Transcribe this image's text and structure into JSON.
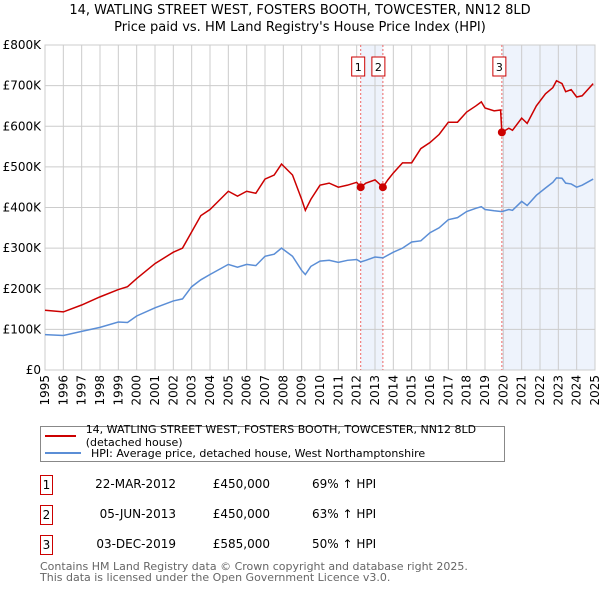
{
  "title": "14, WATLING STREET WEST, FOSTERS BOOTH, TOWCESTER, NN12 8LD",
  "subtitle": "Price paid vs. HM Land Registry's House Price Index (HPI)",
  "colors": {
    "property": "#cc0000",
    "hpi": "#5b8ed6",
    "shade": "#eef3fc",
    "grid": "#cccccc"
  },
  "chart_data": {
    "type": "line",
    "xlim": [
      1995,
      2025
    ],
    "ylim": [
      0,
      800000
    ],
    "yticks": [
      {
        "v": 0,
        "label": "£0"
      },
      {
        "v": 100000,
        "label": "£100K"
      },
      {
        "v": 200000,
        "label": "£200K"
      },
      {
        "v": 300000,
        "label": "£300K"
      },
      {
        "v": 400000,
        "label": "£400K"
      },
      {
        "v": 500000,
        "label": "£500K"
      },
      {
        "v": 600000,
        "label": "£600K"
      },
      {
        "v": 700000,
        "label": "£700K"
      },
      {
        "v": 800000,
        "label": "£800K"
      }
    ],
    "xticks": [
      "1995",
      "1996",
      "1997",
      "1998",
      "1999",
      "2000",
      "2001",
      "2002",
      "2003",
      "2004",
      "2005",
      "2006",
      "2007",
      "2008",
      "2009",
      "2010",
      "2011",
      "2012",
      "2013",
      "2014",
      "2015",
      "2016",
      "2017",
      "2018",
      "2019",
      "2020",
      "2021",
      "2022",
      "2023",
      "2024",
      "2025"
    ],
    "grid": true,
    "series": [
      {
        "name": "14, WATLING STREET WEST, FOSTERS BOOTH, TOWCESTER, NN12 8LD (detached house)",
        "color": "#cc0000",
        "x": [
          1995,
          1996,
          1997,
          1998,
          1999,
          1999.5,
          2000,
          2001,
          2002,
          2002.5,
          2003,
          2003.5,
          2004,
          2005,
          2005.5,
          2006,
          2006.5,
          2007,
          2007.5,
          2007.9,
          2008.5,
          2009,
          2009.2,
          2009.5,
          2010,
          2010.5,
          2011,
          2011.5,
          2012,
          2012.22,
          2012.5,
          2013,
          2013.43,
          2013.7,
          2014,
          2014.5,
          2015,
          2015.5,
          2016,
          2016.5,
          2017,
          2017.5,
          2018,
          2018.5,
          2018.8,
          2019,
          2019.5,
          2019.85,
          2019.92,
          2020.3,
          2020.5,
          2021,
          2021.3,
          2021.8,
          2022.3,
          2022.7,
          2022.9,
          2023.2,
          2023.4,
          2023.7,
          2024,
          2024.3,
          2024.9
        ],
        "y": [
          147000,
          143000,
          160000,
          180000,
          198000,
          205000,
          225000,
          262000,
          290000,
          300000,
          340000,
          380000,
          395000,
          440000,
          428000,
          440000,
          435000,
          470000,
          480000,
          507000,
          480000,
          420000,
          393000,
          420000,
          455000,
          460000,
          450000,
          455000,
          462000,
          450000,
          460000,
          468000,
          450000,
          468000,
          485000,
          510000,
          510000,
          545000,
          560000,
          580000,
          610000,
          610000,
          635000,
          650000,
          660000,
          645000,
          638000,
          640000,
          585000,
          595000,
          590000,
          620000,
          607000,
          650000,
          680000,
          695000,
          712000,
          705000,
          685000,
          690000,
          672000,
          675000,
          705000
        ]
      },
      {
        "name": "HPI: Average price, detached house, West Northamptonshire",
        "color": "#5b8ed6",
        "x": [
          1995,
          1996,
          1997,
          1998,
          1999,
          1999.5,
          2000,
          2001,
          2002,
          2002.5,
          2003,
          2003.5,
          2004,
          2005,
          2005.5,
          2006,
          2006.5,
          2007,
          2007.5,
          2007.9,
          2008.5,
          2009,
          2009.2,
          2009.5,
          2010,
          2010.5,
          2011,
          2011.5,
          2012,
          2012.22,
          2012.5,
          2013,
          2013.43,
          2014,
          2014.5,
          2015,
          2015.5,
          2016,
          2016.5,
          2017,
          2017.5,
          2018,
          2018.5,
          2018.8,
          2019,
          2019.5,
          2019.92,
          2020.3,
          2020.5,
          2021,
          2021.3,
          2021.8,
          2022.3,
          2022.7,
          2022.9,
          2023.2,
          2023.4,
          2023.7,
          2024,
          2024.3,
          2024.9
        ],
        "y": [
          87000,
          85000,
          95000,
          105000,
          118000,
          117000,
          133000,
          153000,
          170000,
          175000,
          205000,
          222000,
          235000,
          260000,
          253000,
          260000,
          257000,
          280000,
          285000,
          300000,
          280000,
          245000,
          235000,
          255000,
          268000,
          270000,
          265000,
          270000,
          272000,
          266000,
          270000,
          278000,
          276000,
          290000,
          300000,
          315000,
          318000,
          338000,
          350000,
          370000,
          375000,
          390000,
          398000,
          402000,
          395000,
          392000,
          390000,
          395000,
          393000,
          415000,
          405000,
          430000,
          448000,
          462000,
          473000,
          472000,
          460000,
          458000,
          450000,
          455000,
          470000
        ]
      }
    ],
    "sales": [
      {
        "id": "1",
        "x": 2012.22,
        "price": 450000,
        "date": "22-MAR-2012",
        "price_label": "£450,000",
        "hpi_label": "69% ↑ HPI"
      },
      {
        "id": "2",
        "x": 2013.43,
        "price": 450000,
        "date": "05-JUN-2013",
        "price_label": "£450,000",
        "hpi_label": "63% ↑ HPI"
      },
      {
        "id": "3",
        "x": 2019.92,
        "price": 585000,
        "date": "03-DEC-2019",
        "price_label": "£585,000",
        "hpi_label": "50% ↑ HPI"
      }
    ],
    "shaded_ranges": [
      [
        2012.22,
        2013.43
      ],
      [
        2019.92,
        2025
      ]
    ],
    "legend_placement": "below"
  },
  "footer": [
    "Contains HM Land Registry data © Crown copyright and database right 2025.",
    "This data is licensed under the Open Government Licence v3.0."
  ]
}
